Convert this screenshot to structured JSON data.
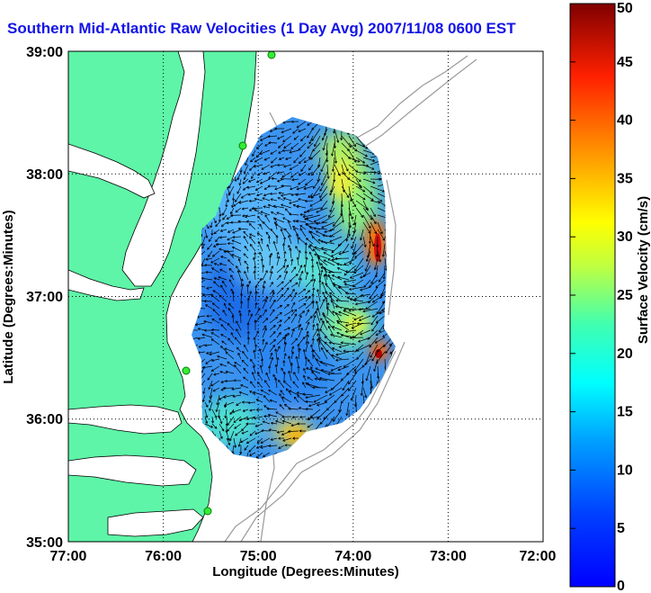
{
  "title": "Southern Mid-Atlantic Raw Velocities (1 Day Avg) 2007/11/08 0600 EST",
  "map": {
    "x_axis_label": "Longitude (Degrees:Minutes)",
    "y_axis_label": "Latitude (Degrees:Minutes)",
    "lon_ticks": [
      "77:00",
      "76:00",
      "75:00",
      "74:00",
      "73:00",
      "72:00"
    ],
    "lat_ticks": [
      "39:00",
      "38:00",
      "37:00",
      "36:00",
      "35:00"
    ],
    "lon_range": [
      -77,
      -72
    ],
    "lat_range": [
      35,
      39
    ],
    "grid": true,
    "land_color": "#5ef5a8",
    "ocean_color": "#ffffff",
    "bathymetry_color": "#9a9a9a",
    "station_color": "#33ee33"
  },
  "colorbar": {
    "label": "Surface Velocity (cm/s)",
    "ticks": [
      "50",
      "45",
      "40",
      "35",
      "30",
      "25",
      "20",
      "15",
      "10",
      "5",
      "0"
    ],
    "range": [
      0,
      50
    ],
    "colormap": "jet"
  },
  "chart_data": {
    "type": "heatmap",
    "title": "Southern Mid-Atlantic Raw Velocities (1 Day Avg) 2007/11/08 0600 EST",
    "xlabel": "Longitude (Degrees:Minutes)",
    "ylabel": "Latitude (Degrees:Minutes)",
    "xlim": [
      -77,
      -72
    ],
    "ylim": [
      35,
      39
    ],
    "value_label": "Surface Velocity (cm/s)",
    "value_range": [
      0,
      50
    ],
    "hotspots": [
      {
        "lon": -73.75,
        "lat": 37.3,
        "speed": 45
      },
      {
        "lon": -73.72,
        "lat": 36.35,
        "speed": 45
      },
      {
        "lon": -74.15,
        "lat": 36.5,
        "speed": 25
      },
      {
        "lon": -73.9,
        "lat": 37.9,
        "speed": 25
      },
      {
        "lon": -74.7,
        "lat": 35.8,
        "speed": 30
      },
      {
        "lon": -75.2,
        "lat": 37.0,
        "speed": 5
      },
      {
        "lon": -74.5,
        "lat": 36.3,
        "speed": 8
      }
    ],
    "stations": [
      {
        "lon": -74.85,
        "lat": 38.97
      },
      {
        "lon": -75.15,
        "lat": 38.22
      },
      {
        "lon": -75.8,
        "lat": 36.2
      },
      {
        "lon": -75.5,
        "lat": 35.27
      }
    ]
  }
}
